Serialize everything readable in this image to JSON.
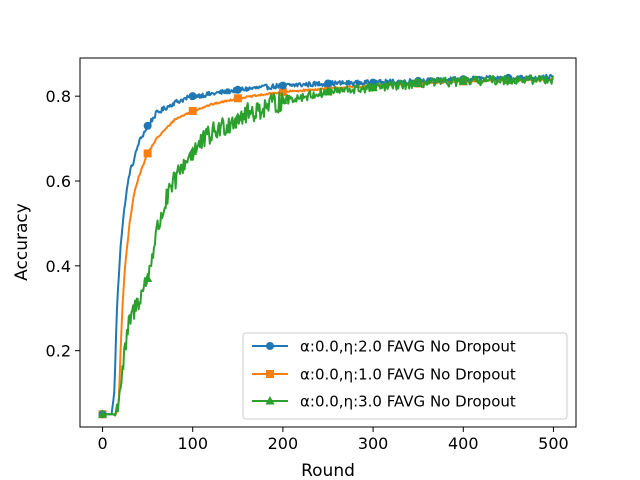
{
  "chart_data": {
    "type": "line",
    "xlabel": "Round",
    "ylabel": "Accuracy",
    "xlim": [
      -25,
      525
    ],
    "ylim": [
      0.02,
      0.89
    ],
    "xticks": [
      0,
      100,
      200,
      300,
      400,
      500
    ],
    "yticks": [
      0.2,
      0.4,
      0.6,
      0.8
    ],
    "xtick_labels": [
      "0",
      "100",
      "200",
      "300",
      "400",
      "500"
    ],
    "ytick_labels": [
      "0.2",
      "0.4",
      "0.6",
      "0.8"
    ],
    "grid": false,
    "legend_position": "lower-right",
    "series": [
      {
        "name": "α:0.0,η:2.0 FAVG No Dropout",
        "color": "#1f77b4",
        "marker": "circle",
        "markers_at": [
          0,
          50,
          100,
          150,
          200,
          250,
          300,
          350,
          400,
          450
        ],
        "x": [
          0,
          5,
          10,
          13,
          16,
          20,
          25,
          30,
          35,
          40,
          50,
          60,
          80,
          100,
          120,
          150,
          200,
          250,
          300,
          350,
          400,
          450,
          500
        ],
        "y": [
          0.05,
          0.05,
          0.05,
          0.1,
          0.3,
          0.45,
          0.55,
          0.62,
          0.65,
          0.69,
          0.73,
          0.76,
          0.785,
          0.8,
          0.805,
          0.815,
          0.825,
          0.83,
          0.832,
          0.836,
          0.84,
          0.843,
          0.845
        ],
        "noise": 0.006
      },
      {
        "name": "α:0.0,η:1.0 FAVG No Dropout",
        "color": "#ff7f0e",
        "marker": "square",
        "markers_at": [
          0,
          50,
          100,
          150,
          200,
          250,
          300,
          350,
          400,
          450
        ],
        "x": [
          0,
          5,
          10,
          15,
          18,
          20,
          22,
          25,
          30,
          35,
          40,
          50,
          60,
          80,
          100,
          120,
          150,
          200,
          250,
          300,
          350,
          400,
          450,
          500
        ],
        "y": [
          0.05,
          0.05,
          0.05,
          0.05,
          0.08,
          0.2,
          0.3,
          0.4,
          0.5,
          0.57,
          0.61,
          0.665,
          0.7,
          0.745,
          0.765,
          0.78,
          0.795,
          0.81,
          0.818,
          0.825,
          0.83,
          0.835,
          0.838,
          0.84
        ],
        "noise": 0.002
      },
      {
        "name": "α:0.0,η:3.0 FAVG No Dropout",
        "color": "#2ca02c",
        "marker": "triangle",
        "markers_at": [
          0,
          50,
          100,
          150,
          200,
          250,
          300,
          350,
          400,
          450
        ],
        "x": [
          0,
          5,
          10,
          15,
          20,
          25,
          30,
          40,
          50,
          60,
          70,
          80,
          90,
          100,
          120,
          150,
          200,
          250,
          300,
          350,
          400,
          450,
          500
        ],
        "y": [
          0.05,
          0.05,
          0.05,
          0.05,
          0.12,
          0.2,
          0.27,
          0.32,
          0.37,
          0.48,
          0.55,
          0.6,
          0.64,
          0.67,
          0.71,
          0.75,
          0.79,
          0.81,
          0.82,
          0.83,
          0.835,
          0.838,
          0.84
        ],
        "noise": 0.018
      }
    ]
  }
}
